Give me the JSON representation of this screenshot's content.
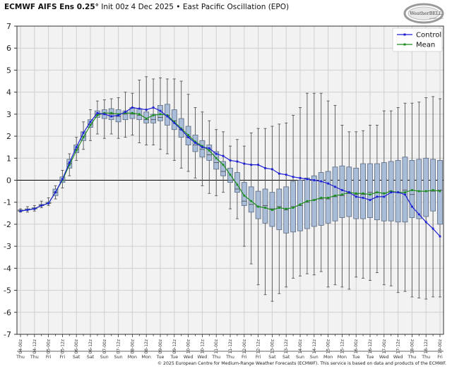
{
  "header": {
    "model": "ECMWF AIFS Ens 0.25°",
    "init": "Init 00z 4 Dec 2025",
    "separator": "•",
    "index_name": "East Pacific Oscillation (EPO)"
  },
  "logo": {
    "text": "WeatherBELL",
    "sub": "Analytics LLC"
  },
  "footer": {
    "copyright": "© 2025 European Centre for Medium-Range Weather Forecasts (ECMWF). This service is based on data and products of the ECMWF."
  },
  "legend": {
    "items": [
      {
        "label": "Control",
        "color": "#1f1fd6"
      },
      {
        "label": "Mean",
        "color": "#1e8f1e"
      }
    ]
  },
  "colors": {
    "control": "#1f1fd6",
    "mean": "#1e8f1e",
    "box_fill": "#a9bdd8",
    "box_edge": "#5a6a80",
    "whisker": "#555555",
    "grid": "#d0d0d0",
    "plot_bg": "#f2f2f2",
    "zero_line": "#000000"
  },
  "chart_data": {
    "type": "line",
    "title": "ECMWF AIFS Ens 0.25° Init 00z 4 Dec 2025 • East Pacific Oscillation (EPO)",
    "xlabel": "",
    "ylabel": "",
    "ylim": [
      -7,
      7
    ],
    "yticks": [
      7,
      6,
      5,
      4,
      3,
      2,
      1,
      0,
      -1,
      -2,
      -3,
      -4,
      -5,
      -6,
      -7
    ],
    "grid": true,
    "legend_position": "upper right",
    "x_tick_labels": [
      "04-00z",
      "04-12z",
      "05-00z",
      "05-12z",
      "06-00z",
      "06-12z",
      "07-00z",
      "07-12z",
      "08-00z",
      "08-12z",
      "09-00z",
      "09-12z",
      "10-00z",
      "10-12z",
      "11-00z",
      "11-12z",
      "12-00z",
      "12-12z",
      "13-00z",
      "13-12z",
      "14-00z",
      "14-12z",
      "15-00z",
      "15-12z",
      "16-00z",
      "16-12z",
      "17-00z",
      "17-12z",
      "18-00z",
      "18-12z",
      "19-00z"
    ],
    "x_day_labels": [
      "Thu",
      "Thu",
      "Fri",
      "Fri",
      "Sat",
      "Sat",
      "Sun",
      "Sun",
      "Mon",
      "Mon",
      "Tue",
      "Tue",
      "Wed",
      "Wed",
      "Thu",
      "Thu",
      "Fri",
      "Fri",
      "Sat",
      "Sat",
      "Sun",
      "Sun",
      "Mon",
      "Mon",
      "Tue",
      "Tue",
      "Wed",
      "Wed",
      "Thu",
      "Thu",
      "Fri"
    ],
    "step_hours": 6,
    "series": [
      {
        "name": "Control",
        "values": [
          -1.4,
          -1.35,
          -1.3,
          -1.15,
          -1.05,
          -0.55,
          0.05,
          0.8,
          1.5,
          2.15,
          2.65,
          3.05,
          3.0,
          2.9,
          2.95,
          3.1,
          3.3,
          3.25,
          3.2,
          3.3,
          3.15,
          2.9,
          2.6,
          2.3,
          1.95,
          1.7,
          1.5,
          1.45,
          1.2,
          1.1,
          0.9,
          0.85,
          0.75,
          0.7,
          0.7,
          0.55,
          0.5,
          0.3,
          0.25,
          0.15,
          0.1,
          0.05,
          0.0,
          -0.05,
          -0.15,
          -0.3,
          -0.45,
          -0.55,
          -0.75,
          -0.8,
          -0.9,
          -0.75,
          -0.75,
          -0.55,
          -0.55,
          -0.65,
          -1.2,
          -1.55,
          -1.9,
          -2.2,
          -2.55
        ]
      },
      {
        "name": "Mean",
        "values": [
          -1.4,
          -1.35,
          -1.3,
          -1.15,
          -1.05,
          -0.55,
          0.0,
          0.7,
          1.35,
          1.95,
          2.5,
          2.95,
          3.05,
          3.05,
          3.0,
          3.05,
          3.05,
          3.0,
          2.8,
          2.95,
          3.0,
          2.95,
          2.65,
          2.35,
          2.05,
          1.75,
          1.55,
          1.35,
          1.0,
          0.7,
          0.25,
          -0.2,
          -0.7,
          -0.95,
          -1.2,
          -1.25,
          -1.35,
          -1.25,
          -1.3,
          -1.25,
          -1.1,
          -0.95,
          -0.9,
          -0.8,
          -0.8,
          -0.7,
          -0.65,
          -0.55,
          -0.6,
          -0.6,
          -0.65,
          -0.55,
          -0.6,
          -0.5,
          -0.55,
          -0.55,
          -0.45,
          -0.5,
          -0.5,
          -0.45,
          -0.5
        ]
      }
    ],
    "boxes": {
      "q1": [
        -1.4,
        -1.35,
        -1.3,
        -1.15,
        -1.05,
        -0.7,
        -0.1,
        0.55,
        1.25,
        1.8,
        2.4,
        2.85,
        2.8,
        2.75,
        2.65,
        2.75,
        2.8,
        2.75,
        2.6,
        2.6,
        2.7,
        2.5,
        2.3,
        1.95,
        1.6,
        1.3,
        1.05,
        0.9,
        0.5,
        0.2,
        -0.1,
        -0.55,
        -1.15,
        -1.45,
        -1.75,
        -1.95,
        -2.1,
        -2.25,
        -2.4,
        -2.35,
        -2.3,
        -2.2,
        -2.1,
        -2.05,
        -1.95,
        -1.85,
        -1.7,
        -1.65,
        -1.75,
        -1.75,
        -1.7,
        -1.8,
        -1.85,
        -1.85,
        -1.9,
        -1.9,
        -1.7,
        -1.75,
        -1.65,
        -1.4,
        -2.0
      ],
      "median": [
        -1.4,
        -1.35,
        -1.3,
        -1.15,
        -1.05,
        -0.55,
        0.0,
        0.75,
        1.4,
        2.0,
        2.55,
        3.0,
        3.0,
        3.0,
        2.9,
        3.0,
        3.0,
        2.95,
        2.75,
        2.75,
        2.85,
        2.95,
        2.7,
        2.3,
        1.95,
        1.6,
        1.4,
        1.15,
        0.8,
        0.4,
        0.0,
        -0.4,
        -0.95,
        -1.1,
        -1.2,
        -1.15,
        -1.3,
        -1.2,
        -1.35,
        -1.2,
        -1.15,
        -1.0,
        -0.9,
        -0.85,
        -0.85,
        -0.75,
        -0.7,
        -0.6,
        -0.65,
        -0.65,
        -0.55,
        -0.55,
        -0.6,
        -0.5,
        -0.55,
        -0.45,
        -0.65,
        -0.5,
        -0.5,
        -0.5,
        -0.45
      ],
      "q3": [
        -1.35,
        -1.3,
        -1.25,
        -1.1,
        -1.0,
        -0.4,
        0.15,
        0.95,
        1.6,
        2.2,
        2.75,
        3.15,
        3.2,
        3.25,
        3.2,
        3.15,
        3.3,
        3.25,
        3.1,
        3.0,
        3.4,
        3.45,
        3.2,
        2.8,
        2.45,
        2.05,
        1.8,
        1.6,
        1.3,
        0.85,
        0.55,
        0.35,
        -0.1,
        -0.3,
        -0.5,
        -0.4,
        -0.55,
        -0.4,
        -0.3,
        -0.05,
        0.0,
        0.1,
        0.2,
        0.35,
        0.4,
        0.6,
        0.65,
        0.6,
        0.55,
        0.75,
        0.75,
        0.75,
        0.8,
        0.85,
        0.9,
        1.05,
        0.9,
        0.95,
        1.0,
        0.95,
        0.9
      ],
      "min": [
        -1.45,
        -1.45,
        -1.4,
        -1.25,
        -1.15,
        -0.85,
        -0.35,
        0.2,
        0.9,
        1.4,
        1.8,
        2.1,
        1.9,
        2.1,
        1.9,
        1.95,
        2.05,
        1.7,
        1.6,
        1.6,
        1.4,
        1.2,
        0.9,
        0.55,
        0.4,
        0.1,
        -0.25,
        -0.6,
        -0.7,
        -0.55,
        -1.3,
        -1.75,
        -3.0,
        -3.8,
        -4.75,
        -5.2,
        -5.5,
        -5.15,
        -4.85,
        -4.45,
        -4.35,
        -4.25,
        -4.3,
        -4.15,
        -4.85,
        -4.75,
        -4.85,
        -4.95,
        -4.4,
        -4.45,
        -4.55,
        -4.2,
        -4.75,
        -4.8,
        -5.1,
        -5.05,
        -5.3,
        -5.35,
        -5.4,
        -5.3,
        -5.3
      ],
      "max": [
        -1.3,
        -1.2,
        -1.15,
        -0.95,
        -0.8,
        -0.25,
        0.45,
        1.2,
        1.95,
        2.65,
        3.2,
        3.6,
        3.65,
        3.7,
        3.75,
        4.0,
        3.95,
        4.55,
        4.7,
        4.6,
        4.65,
        4.6,
        4.6,
        4.5,
        3.9,
        3.3,
        3.1,
        2.7,
        2.3,
        2.2,
        1.55,
        1.85,
        1.55,
        2.15,
        2.35,
        2.35,
        2.45,
        2.55,
        2.6,
        2.95,
        3.3,
        3.95,
        3.95,
        3.95,
        3.6,
        3.4,
        2.5,
        2.2,
        2.2,
        2.25,
        2.5,
        2.5,
        3.15,
        3.15,
        3.3,
        3.5,
        3.5,
        3.55,
        3.75,
        3.8,
        3.7
      ]
    }
  }
}
